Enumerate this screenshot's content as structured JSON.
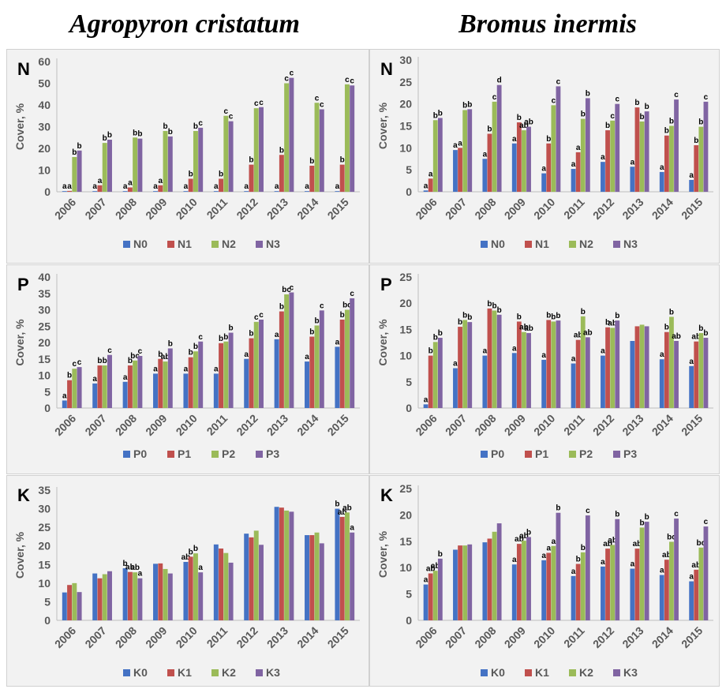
{
  "titles": {
    "left": "Agropyron cristatum",
    "right": "Bromus inermis"
  },
  "colors": {
    "s0": "#4472c4",
    "s1": "#c0504d",
    "s2": "#9bbb59",
    "s3": "#8064a2",
    "bg": "#f2f2f2",
    "axis": "#bfbfbf",
    "text": "#595959"
  },
  "chart_data": [
    {
      "id": "ac-n",
      "type": "bar",
      "panel_label": "N",
      "ylabel": "Cover, %",
      "ylim": [
        0,
        60
      ],
      "yticks": [
        0,
        10,
        20,
        30,
        40,
        50,
        60
      ],
      "categories": [
        "2006",
        "2007",
        "2008",
        "2009",
        "2010",
        "2011",
        "2012",
        "2013",
        "2014",
        "2015"
      ],
      "series": [
        {
          "name": "N0",
          "values": [
            0.3,
            0.3,
            0.3,
            0.3,
            0.3,
            0.3,
            0.3,
            0.3,
            0.3,
            0.3
          ],
          "sig": [
            "a",
            "a",
            "a",
            "a",
            "a",
            "a",
            "a",
            "a",
            "a",
            "a"
          ]
        },
        {
          "name": "N1",
          "values": [
            0.4,
            3,
            2,
            3,
            6,
            6,
            12.5,
            17,
            12,
            12.5
          ],
          "sig": [
            "a",
            "a",
            "a",
            "a",
            "b",
            "b",
            "b",
            "b",
            "b",
            "b"
          ]
        },
        {
          "name": "N2",
          "values": [
            16,
            22.5,
            25,
            28,
            28,
            35,
            38.5,
            50,
            41,
            49.5
          ],
          "sig": [
            "b",
            "b",
            "b",
            "b",
            "b",
            "c",
            "c",
            "c",
            "c",
            "c"
          ]
        },
        {
          "name": "N3",
          "values": [
            19,
            24,
            24.5,
            25.5,
            29.5,
            32.5,
            39,
            52.5,
            38,
            49
          ],
          "sig": [
            "b",
            "b",
            "b",
            "b",
            "c",
            "c",
            "c",
            "c",
            "c",
            "c"
          ]
        }
      ]
    },
    {
      "id": "bi-n",
      "type": "bar",
      "panel_label": "N",
      "ylabel": "Cover, %",
      "ylim": [
        0,
        30
      ],
      "yticks": [
        0,
        5,
        10,
        15,
        20,
        25,
        30
      ],
      "categories": [
        "2006",
        "2007",
        "2008",
        "2009",
        "2010",
        "2011",
        "2012",
        "2013",
        "2014",
        "2015"
      ],
      "series": [
        {
          "name": "N0",
          "values": [
            0.3,
            9.5,
            7.5,
            11,
            4.2,
            5.2,
            6.8,
            5.7,
            4.5,
            2.7
          ],
          "sig": [
            "a",
            "a",
            "a",
            "a",
            "a",
            "a",
            "a",
            "a",
            "a",
            "a"
          ]
        },
        {
          "name": "N1",
          "values": [
            3,
            10,
            13.2,
            15.8,
            11,
            9,
            14,
            19.2,
            12.8,
            10.6
          ],
          "sig": [
            "a",
            "a",
            "b",
            "b",
            "b",
            "a",
            "b",
            "b",
            "b",
            "b"
          ]
        },
        {
          "name": "N2",
          "values": [
            16.3,
            18.6,
            20.5,
            14,
            19.7,
            16.6,
            16.2,
            16,
            15,
            14.8
          ],
          "sig": [
            "b",
            "b",
            "c",
            "ab",
            "c",
            "b",
            "c",
            "b",
            "b",
            "b"
          ]
        },
        {
          "name": "N3",
          "values": [
            16.8,
            18.8,
            24.3,
            14.8,
            24,
            21.3,
            20,
            18.3,
            21,
            20.5
          ],
          "sig": [
            "b",
            "b",
            "d",
            "ab",
            "c",
            "b",
            "c",
            "b",
            "c",
            "c"
          ]
        }
      ]
    },
    {
      "id": "ac-p",
      "type": "bar",
      "panel_label": "P",
      "ylabel": "Cover, %",
      "ylim": [
        0,
        40
      ],
      "yticks": [
        0,
        5,
        10,
        15,
        20,
        25,
        30,
        35,
        40
      ],
      "categories": [
        "2006",
        "2007",
        "2008",
        "2009",
        "2010",
        "2011",
        "2012",
        "2013",
        "2014",
        "2015"
      ],
      "series": [
        {
          "name": "P0",
          "values": [
            2.3,
            7.5,
            8,
            10.5,
            10.5,
            10.5,
            15,
            21,
            14.2,
            18.7
          ],
          "sig": [
            "a",
            "a",
            "a",
            "a",
            "a",
            "a",
            "a",
            "a",
            "a",
            "a"
          ]
        },
        {
          "name": "P1",
          "values": [
            8.5,
            13,
            13,
            15,
            15.5,
            19.8,
            21.3,
            29.5,
            21.8,
            27
          ],
          "sig": [
            "b",
            "b",
            "b",
            "b",
            "b",
            "b",
            "b",
            "b",
            "b",
            "b"
          ]
        },
        {
          "name": "P2",
          "values": [
            12,
            13,
            14.5,
            14.2,
            17.3,
            20.3,
            26.3,
            34.7,
            25.2,
            30
          ],
          "sig": [
            "c",
            "b",
            "bc",
            "ab",
            "b",
            "b",
            "c",
            "bc",
            "b",
            "bc"
          ]
        },
        {
          "name": "P3",
          "values": [
            12.5,
            16.2,
            15.9,
            18.2,
            20.3,
            23,
            27,
            35.3,
            29.8,
            33.5
          ],
          "sig": [
            "c",
            "c",
            "c",
            "b",
            "c",
            "b",
            "c",
            "c",
            "c",
            "c"
          ]
        }
      ]
    },
    {
      "id": "bi-p",
      "type": "bar",
      "panel_label": "P",
      "ylabel": "Cover, %",
      "ylim": [
        0,
        25
      ],
      "yticks": [
        0,
        5,
        10,
        15,
        20,
        25
      ],
      "categories": [
        "2006",
        "2007",
        "2008",
        "2009",
        "2010",
        "2011",
        "2012",
        "2013",
        "2014",
        "2015"
      ],
      "series": [
        {
          "name": "P0",
          "values": [
            0.7,
            7.6,
            10,
            10.5,
            9.2,
            8.5,
            10,
            12.8,
            9.3,
            8
          ],
          "sig": [
            "a",
            "a",
            "a",
            "a",
            "a",
            "a",
            "a",
            "",
            "a",
            "a"
          ]
        },
        {
          "name": "P1",
          "values": [
            10,
            15.5,
            19,
            16.5,
            16.8,
            13,
            15.4,
            15.6,
            14.5,
            12.7
          ],
          "sig": [
            "b",
            "b",
            "b",
            "b",
            "b",
            "ab",
            "b",
            "",
            "b",
            "ab"
          ]
        },
        {
          "name": "P2",
          "values": [
            12.6,
            16.8,
            18.6,
            14.5,
            16.5,
            17.5,
            15.3,
            15.9,
            17.4,
            14.3
          ],
          "sig": [
            "b",
            "b",
            "b",
            "ab",
            "b",
            "b",
            "ab",
            "",
            "b",
            "b"
          ]
        },
        {
          "name": "P3",
          "values": [
            13.4,
            16.4,
            17.8,
            14.3,
            16.7,
            13.5,
            16.7,
            15.6,
            12.8,
            13.4
          ],
          "sig": [
            "b",
            "b",
            "b",
            "ab",
            "b",
            "ab",
            "b",
            "",
            "ab",
            "b"
          ]
        }
      ]
    },
    {
      "id": "ac-k",
      "type": "bar",
      "panel_label": "K",
      "ylabel": "Cover, %",
      "ylim": [
        0,
        35
      ],
      "yticks": [
        0,
        5,
        10,
        15,
        20,
        25,
        30,
        35
      ],
      "categories": [
        "2006",
        "2007",
        "2008",
        "2009",
        "2010",
        "2011",
        "2012",
        "2013",
        "2014",
        "2015"
      ],
      "series": [
        {
          "name": "K0",
          "values": [
            7.5,
            12.6,
            14,
            15.2,
            15.7,
            20.4,
            23.3,
            30.5,
            22.9,
            30
          ],
          "sig": [
            "",
            "",
            "b",
            "",
            "ab",
            "",
            "",
            "",
            "",
            "b"
          ]
        },
        {
          "name": "K1",
          "values": [
            9.5,
            11.3,
            13,
            15.3,
            17.1,
            19.3,
            22.3,
            30.3,
            22.9,
            27.8
          ],
          "sig": [
            "",
            "",
            "ab",
            "",
            "b",
            "",
            "",
            "",
            "",
            "ab"
          ]
        },
        {
          "name": "K2",
          "values": [
            10,
            12.4,
            12.9,
            13.8,
            18,
            18.1,
            24.1,
            29.5,
            23.6,
            29
          ],
          "sig": [
            "",
            "",
            "ab",
            "",
            "b",
            "",
            "",
            "",
            "",
            "ab"
          ]
        },
        {
          "name": "K3",
          "values": [
            7.6,
            13.2,
            11.3,
            12.6,
            12.9,
            15.5,
            20.3,
            29.2,
            20.7,
            23.6
          ],
          "sig": [
            "",
            "",
            "a",
            "",
            "a",
            "",
            "",
            "",
            "",
            "a"
          ]
        }
      ]
    },
    {
      "id": "bi-k",
      "type": "bar",
      "panel_label": "K",
      "ylabel": "Cover, %",
      "ylim": [
        0,
        25
      ],
      "yticks": [
        0,
        5,
        10,
        15,
        20,
        25
      ],
      "categories": [
        "2006",
        "2007",
        "2008",
        "2009",
        "2010",
        "2011",
        "2012",
        "2013",
        "2014",
        "2015"
      ],
      "series": [
        {
          "name": "K0",
          "values": [
            6.8,
            13.4,
            14.8,
            10.6,
            11.4,
            8.4,
            10.2,
            9.8,
            8.6,
            7.4
          ],
          "sig": [
            "a",
            "",
            "",
            "a",
            "a",
            "a",
            "a",
            "a",
            "a",
            "a"
          ]
        },
        {
          "name": "K1",
          "values": [
            8.9,
            14.2,
            15.5,
            14.5,
            12.8,
            10.7,
            13.6,
            13.6,
            11.5,
            9.6
          ],
          "sig": [
            "ab",
            "",
            "",
            "ab",
            "a",
            "b",
            "ab",
            "ab",
            "ab",
            "ab"
          ]
        },
        {
          "name": "K2",
          "values": [
            9.4,
            14.2,
            16.8,
            15.1,
            14.1,
            12.9,
            14.3,
            17.6,
            14.9,
            13.8
          ],
          "sig": [
            "ab",
            "",
            "",
            "ab",
            "a",
            "b",
            "ab",
            "b",
            "bc",
            "bc"
          ]
        },
        {
          "name": "K3",
          "values": [
            11.7,
            14.4,
            18.4,
            15.8,
            20.4,
            19.9,
            19.2,
            18.7,
            19.3,
            17.8
          ],
          "sig": [
            "b",
            "",
            "",
            "b",
            "b",
            "c",
            "b",
            "b",
            "c",
            "c"
          ]
        }
      ]
    }
  ]
}
